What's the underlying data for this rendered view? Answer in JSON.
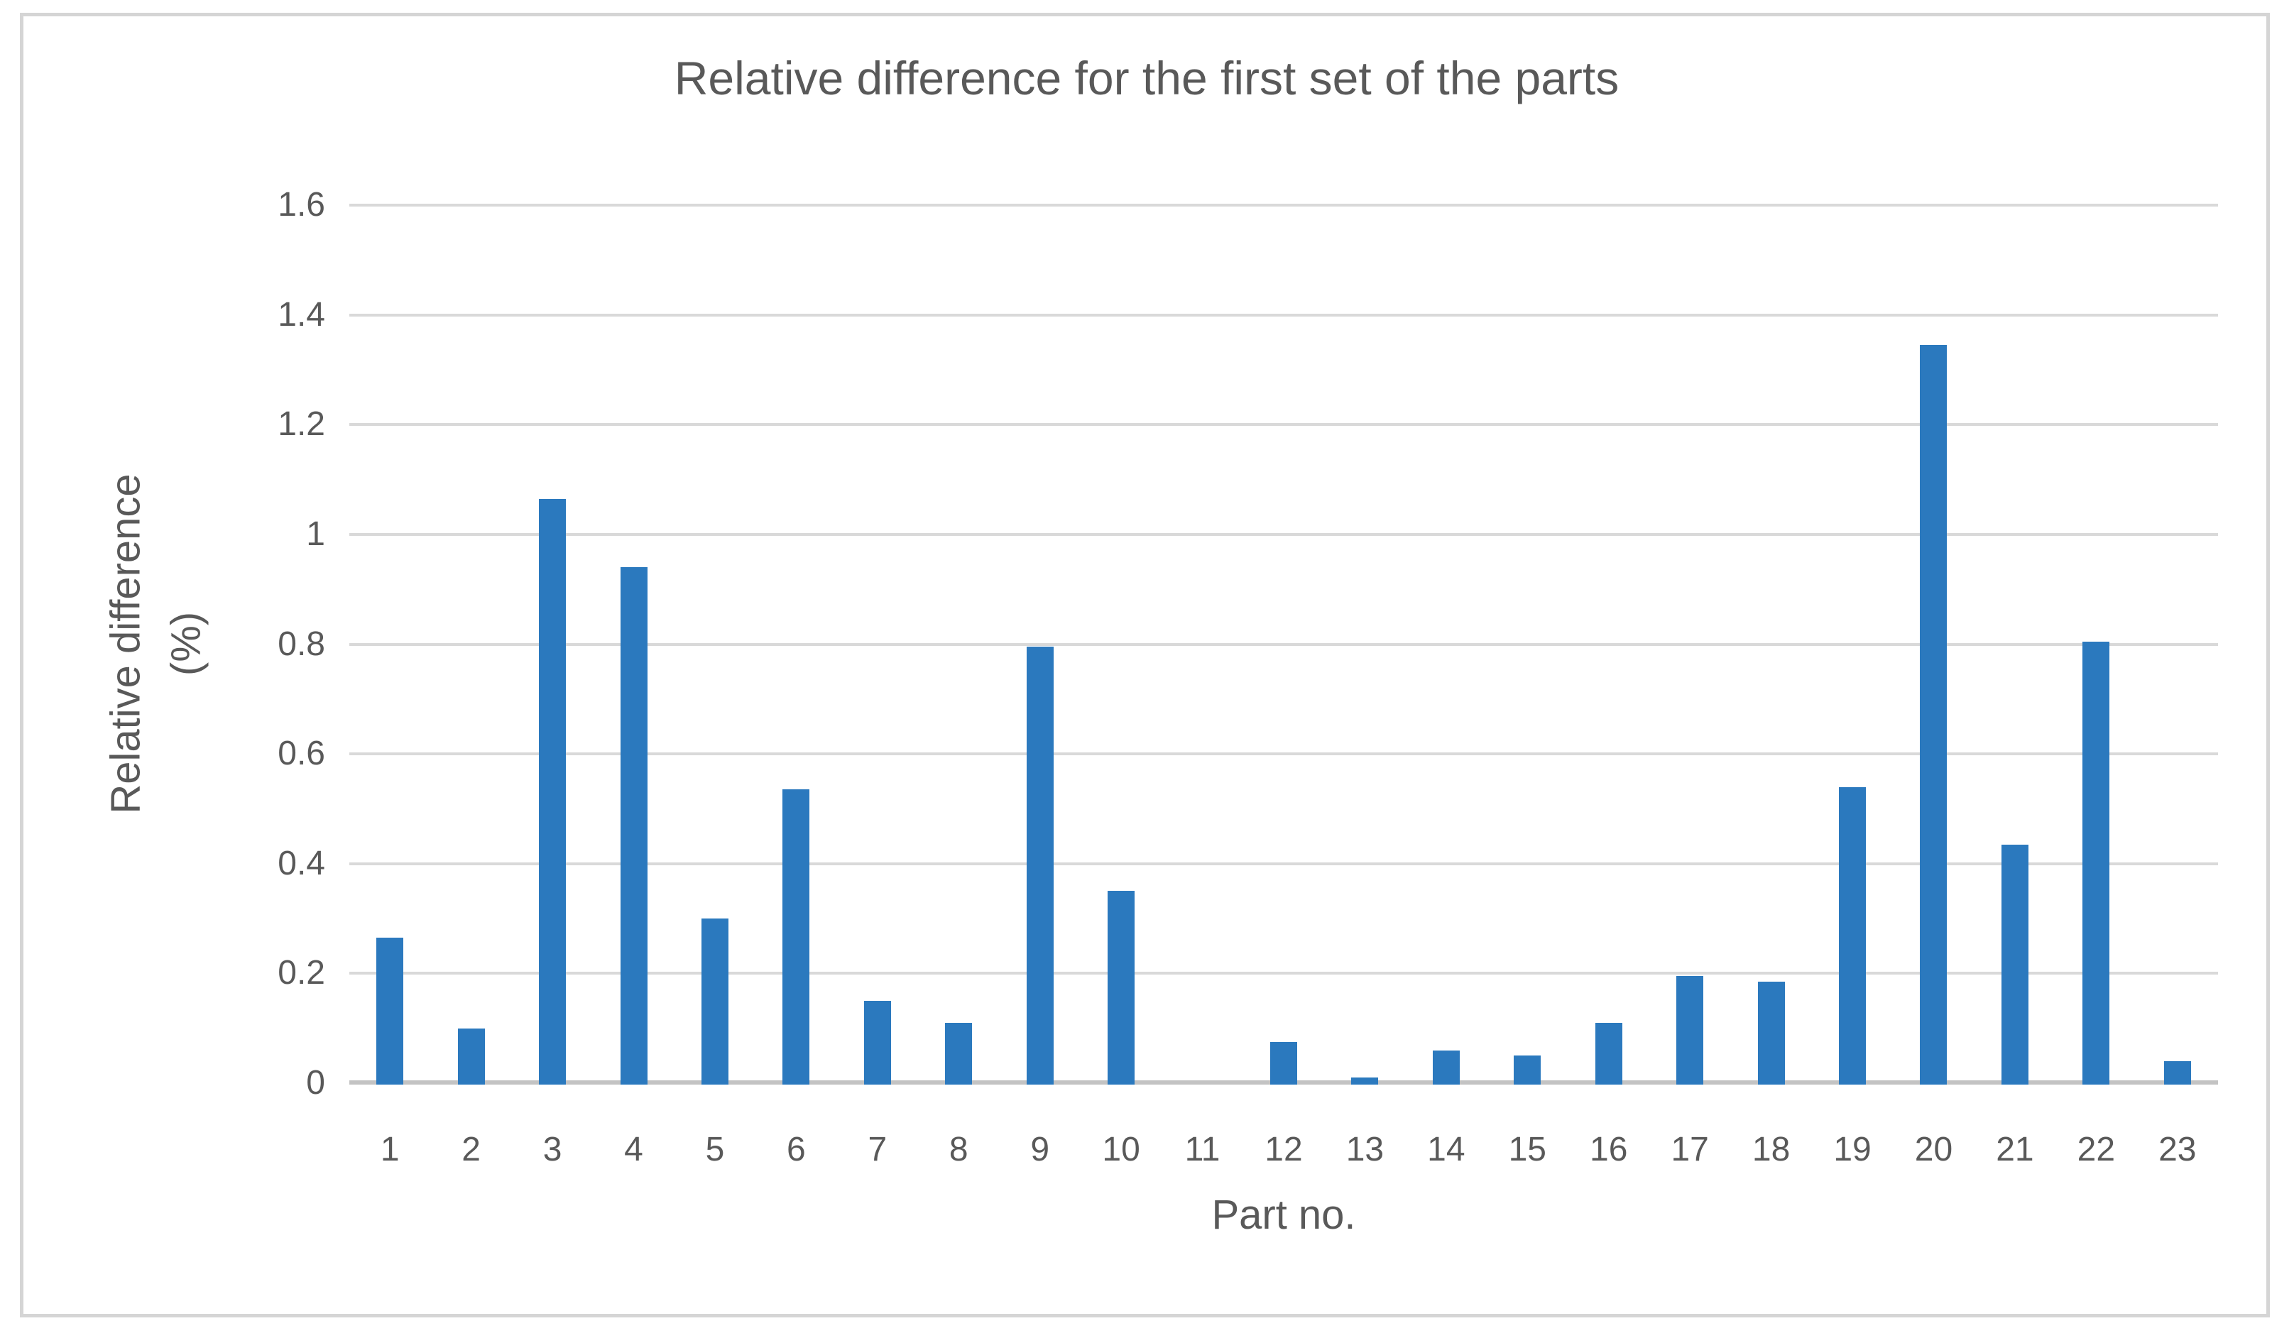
{
  "chart_data": {
    "type": "bar",
    "title": "Relative difference for the first set of the parts",
    "xlabel": "Part no.",
    "ylabel_line1": "Relative difference",
    "ylabel_line2": "(%)",
    "categories": [
      "1",
      "2",
      "3",
      "4",
      "5",
      "6",
      "7",
      "8",
      "9",
      "10",
      "11",
      "12",
      "13",
      "14",
      "15",
      "16",
      "17",
      "18",
      "19",
      "20",
      "21",
      "22",
      "23"
    ],
    "values": [
      0.265,
      0.1,
      1.065,
      0.94,
      0.3,
      0.535,
      0.15,
      0.11,
      0.795,
      0.35,
      0,
      0.075,
      0.01,
      0.06,
      0.05,
      0.11,
      0.195,
      0.185,
      0.54,
      1.345,
      0.435,
      0.805,
      0.04
    ],
    "ylim": [
      0,
      1.6
    ],
    "y_ticks": [
      "0",
      "0.2",
      "0.4",
      "0.6",
      "0.8",
      "1",
      "1.2",
      "1.4",
      "1.6"
    ],
    "grid": true,
    "legend": "none",
    "colors": {
      "bar": "#2B79BE",
      "gridline": "#D9D9D9",
      "axis_line": "#C3C3C3",
      "text": "#595959",
      "border": "#D5D5D5",
      "background": "#FFFFFF"
    }
  }
}
